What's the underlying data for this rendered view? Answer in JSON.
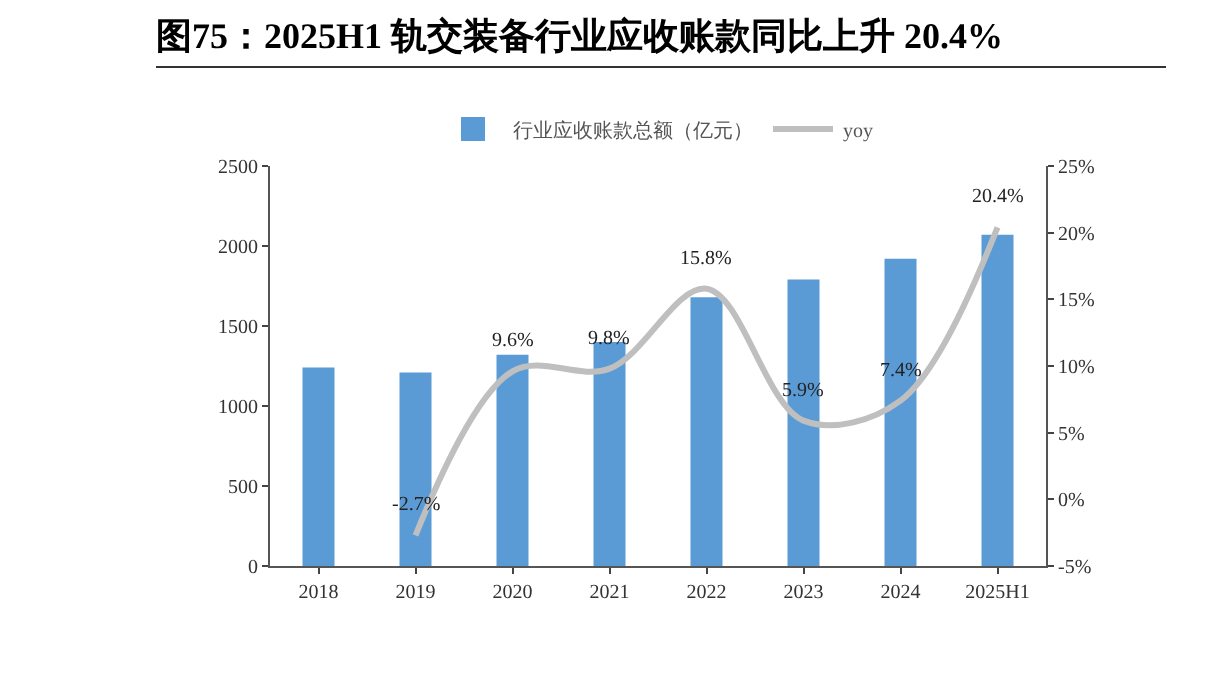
{
  "chart_data": {
    "type": "bar",
    "title": "图75：2025H1 轨交装备行业应收账款同比上升 20.4%",
    "categories": [
      "2018",
      "2019",
      "2020",
      "2021",
      "2022",
      "2023",
      "2024",
      "2025H1"
    ],
    "series": [
      {
        "name": "行业应收账款总额（亿元）",
        "color": "#5b9bd5",
        "values": [
          1240,
          1210,
          1320,
          1400,
          1680,
          1790,
          1920,
          2070
        ]
      },
      {
        "name": "yoy",
        "type": "line",
        "axis": "y2",
        "color": "#bfbfbf",
        "values": [
          null,
          -2.7,
          9.6,
          9.8,
          15.8,
          5.9,
          7.4,
          20.4
        ],
        "value_labels": [
          null,
          "-2.7%",
          "9.6%",
          "9.8%",
          "15.8%",
          "5.9%",
          "7.4%",
          "20.4%"
        ]
      }
    ],
    "ylim": [
      0,
      2500
    ],
    "yticks": [
      0,
      500,
      1000,
      1500,
      2000,
      2500
    ],
    "y2lim": [
      -5,
      25
    ],
    "y2ticks": [
      {
        "value": -5,
        "label": "-5%"
      },
      {
        "value": 0,
        "label": "0%"
      },
      {
        "value": 5,
        "label": "5%"
      },
      {
        "value": 10,
        "label": "10%"
      },
      {
        "value": 15,
        "label": "15%"
      },
      {
        "value": 20,
        "label": "20%"
      },
      {
        "value": 25,
        "label": "25%"
      }
    ],
    "grid": false,
    "legend": "top",
    "marker": "none",
    "line_style": "solid"
  }
}
